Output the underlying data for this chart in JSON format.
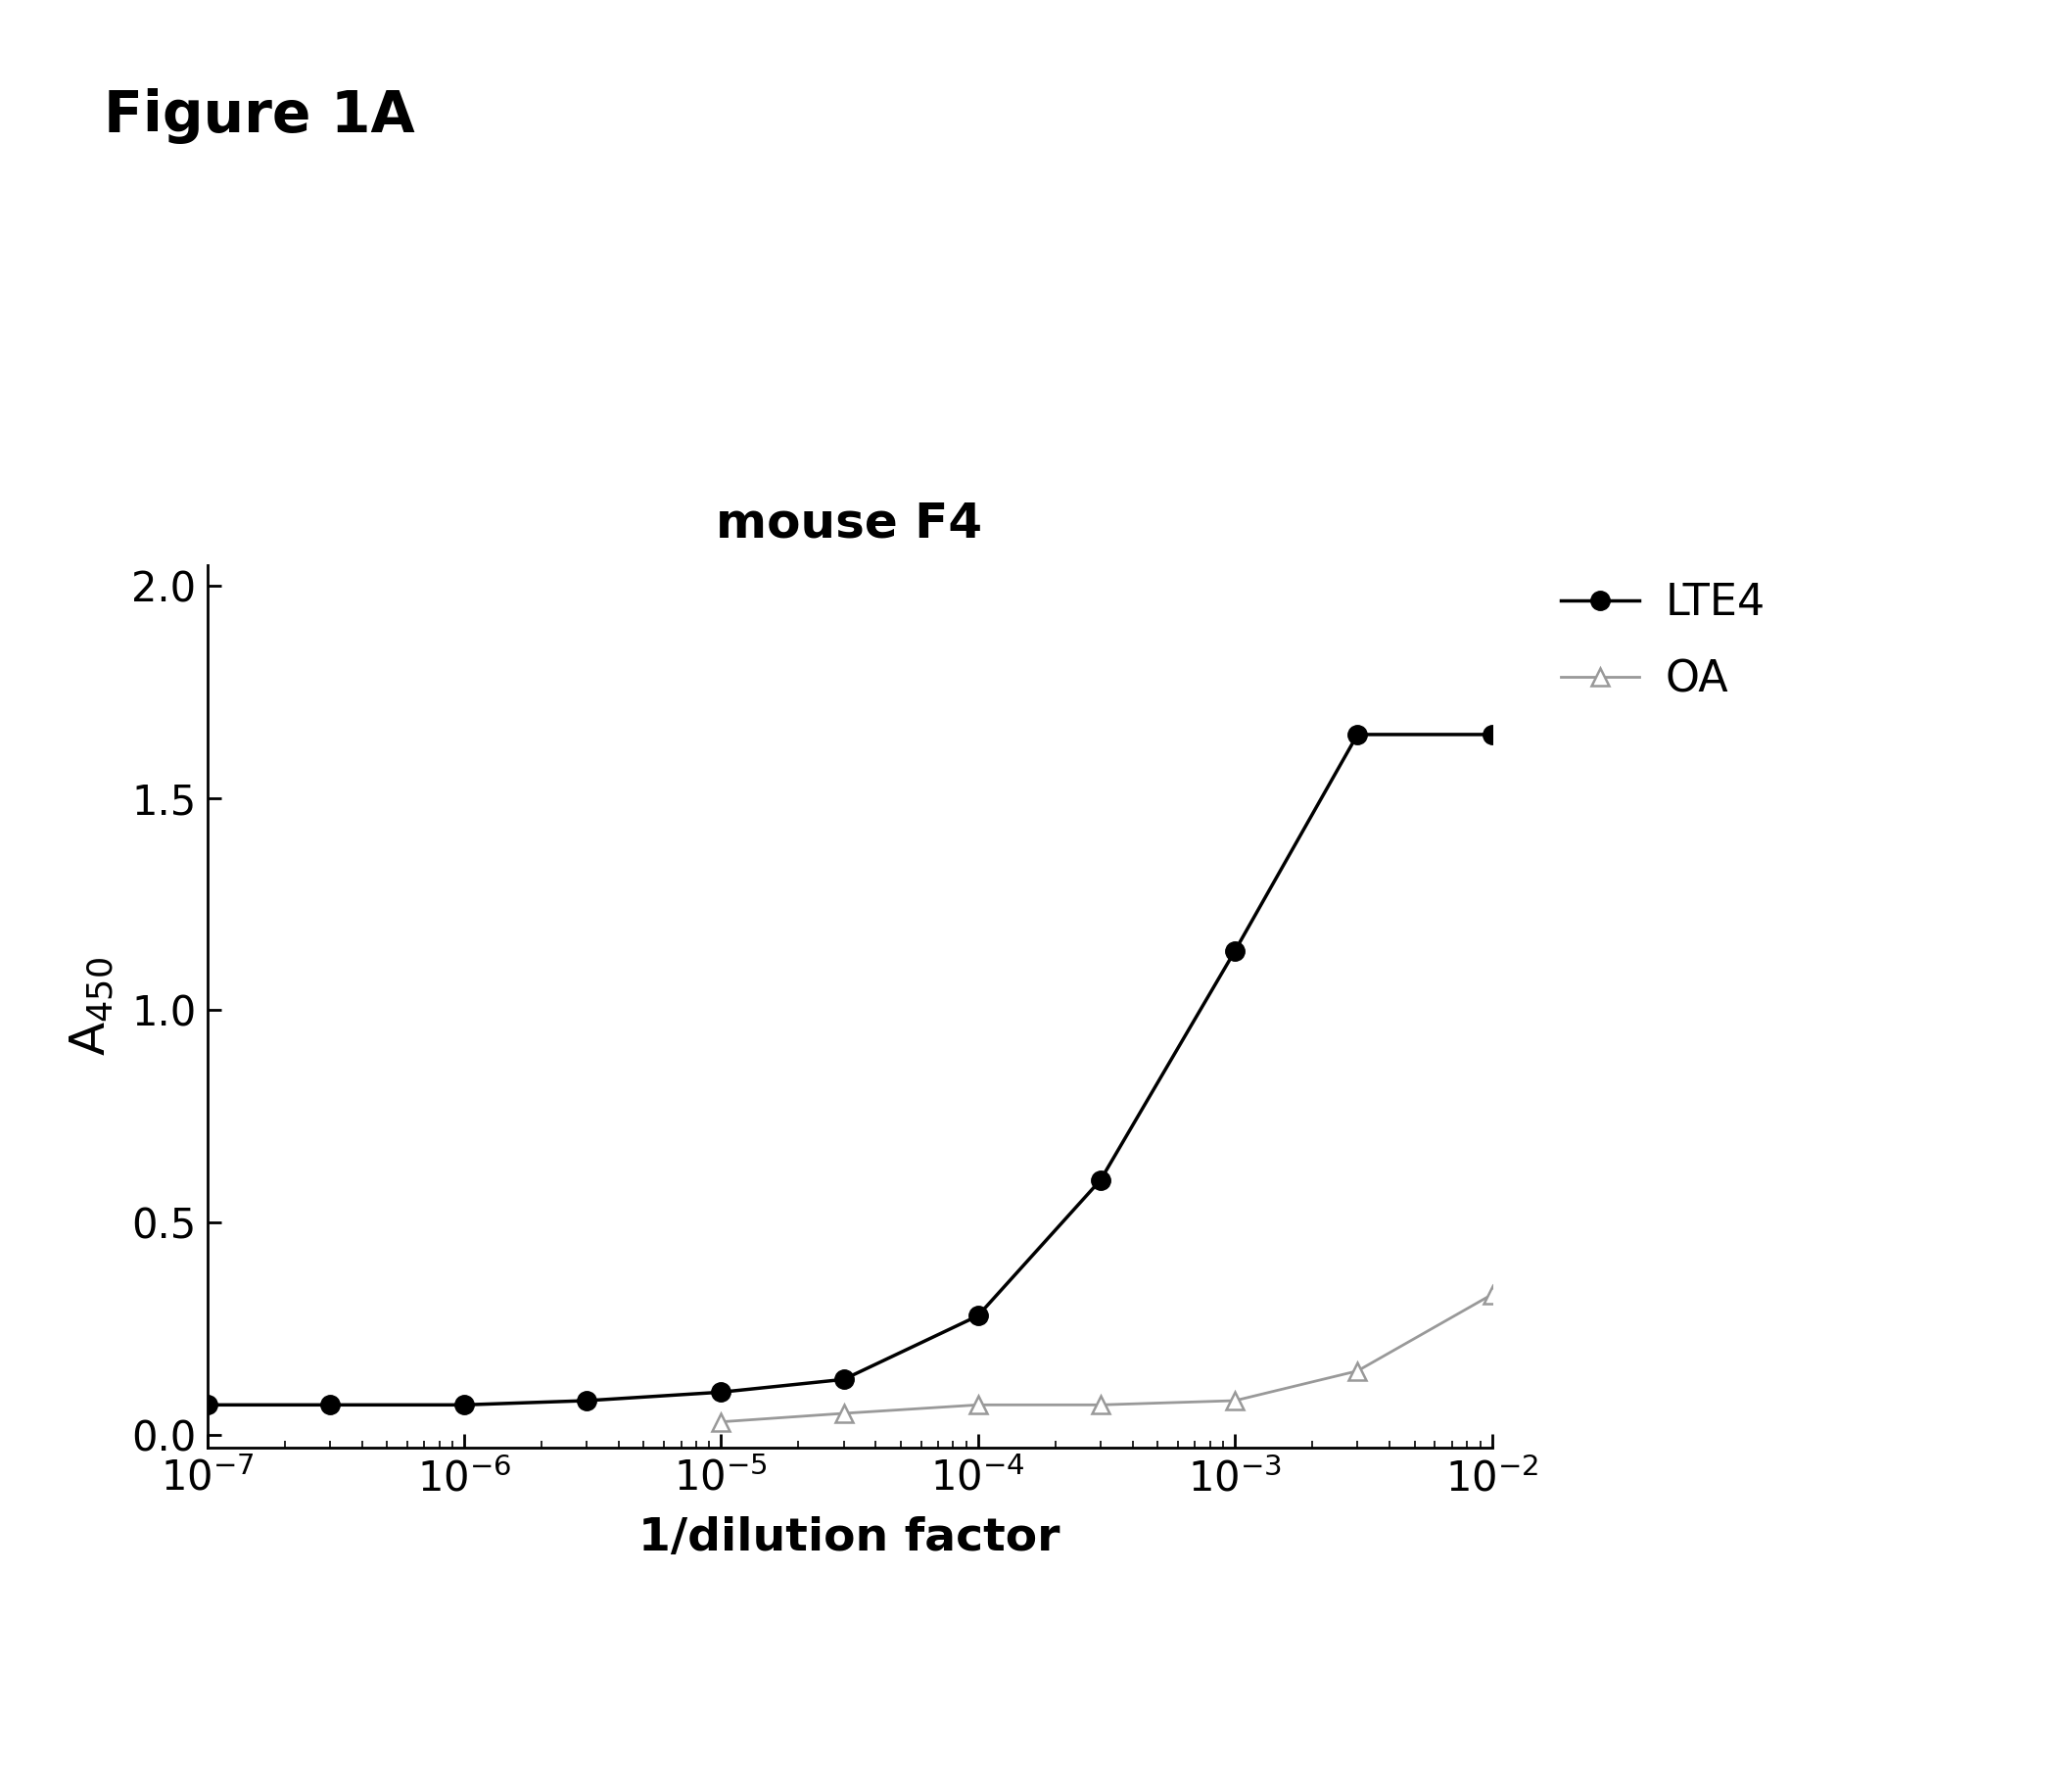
{
  "title": "mouse F4",
  "figure_label": "Figure 1A",
  "xlabel": "1/dilution factor",
  "lte4_x": [
    1e-07,
    3e-07,
    1e-06,
    3e-06,
    1e-05,
    3e-05,
    0.0001,
    0.0003,
    0.001,
    0.003,
    0.01
  ],
  "lte4_y": [
    0.07,
    0.07,
    0.07,
    0.08,
    0.1,
    0.13,
    0.28,
    0.6,
    1.14,
    1.65,
    1.65
  ],
  "oa_x": [
    1e-05,
    3e-05,
    0.0001,
    0.0003,
    0.001,
    0.003,
    0.01
  ],
  "oa_y": [
    0.03,
    0.05,
    0.07,
    0.07,
    0.08,
    0.15,
    0.33
  ],
  "lte4_color": "#000000",
  "oa_color": "#999999",
  "background_color": "#ffffff",
  "title_fontsize": 36,
  "xlabel_fontsize": 34,
  "ylabel_fontsize": 36,
  "tick_fontsize": 30,
  "legend_fontsize": 32,
  "figure_label_fontsize": 42,
  "ylim": [
    -0.03,
    2.05
  ],
  "yticks": [
    0.0,
    0.5,
    1.0,
    1.5,
    2.0
  ]
}
